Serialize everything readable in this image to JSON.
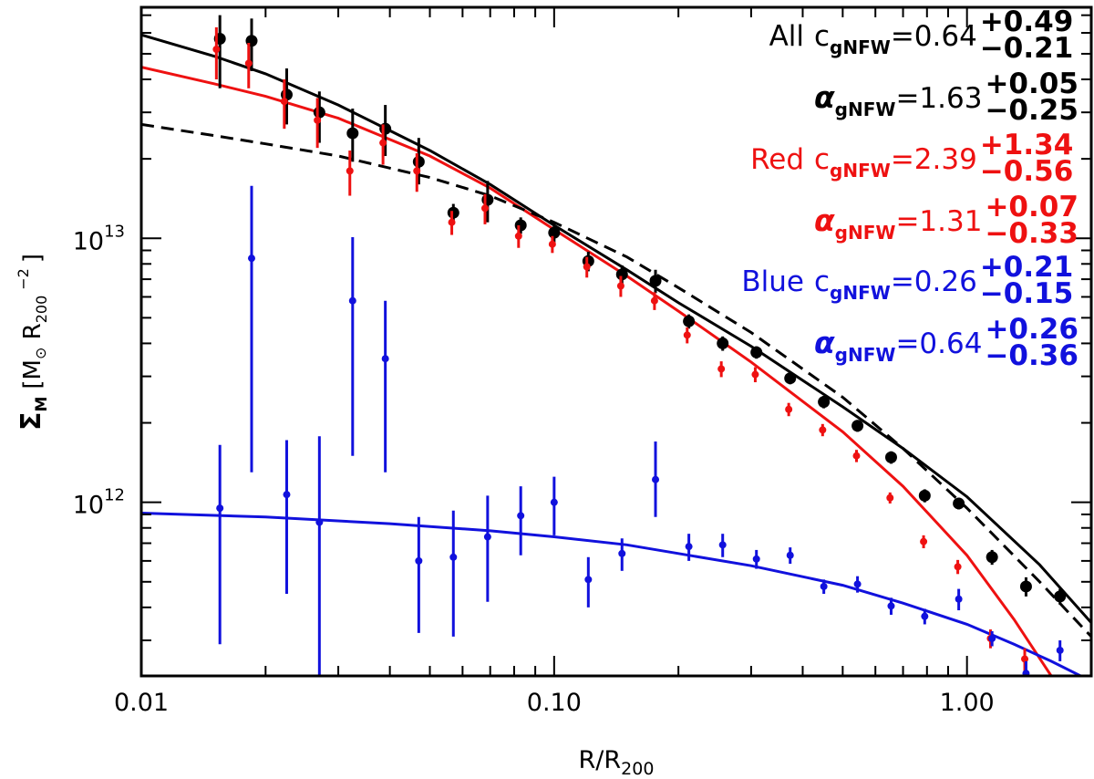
{
  "chart_data": {
    "type": "scatter",
    "xlabel_main": "R/R",
    "xlabel_sub": "200",
    "ylabel_main": "Σ",
    "ylabel_sub": "M",
    "ylabel_unit_text": "[M",
    "ylabel_unit_sun": "⊙",
    "ylabel_unit_r": " R",
    "ylabel_unit_rsub": "200",
    "ylabel_unit_exp": "−2",
    "ylabel_close": "]",
    "xscale": "log",
    "yscale": "log",
    "xlim": [
      0.01,
      2.0
    ],
    "ylim": [
      220000000000.0,
      75000000000000.0
    ],
    "x_ticks": [
      {
        "value": 0.01,
        "label": "0.01"
      },
      {
        "value": 0.1,
        "label": "0.10"
      },
      {
        "value": 1.0,
        "label": "1.00"
      }
    ],
    "y_ticks": [
      {
        "value": 1000000000000.0,
        "base": "10",
        "exp": "12"
      },
      {
        "value": 10000000000000.0,
        "base": "10",
        "exp": "13"
      }
    ],
    "grid": false,
    "legend_position": "top-right",
    "colors": {
      "all": "#000000",
      "red": "#ee1111",
      "blue": "#1111dd"
    },
    "series": [
      {
        "name": "All",
        "color": "#000000",
        "marker": "circle-large",
        "points": [
          {
            "x": 0.0155,
            "y": 57000000000000.0,
            "lo": 37000000000000.0,
            "hi": 70000000000000.0
          },
          {
            "x": 0.0185,
            "y": 56000000000000.0,
            "lo": 43000000000000.0,
            "hi": 68000000000000.0
          },
          {
            "x": 0.0225,
            "y": 35000000000000.0,
            "lo": 27000000000000.0,
            "hi": 44000000000000.0
          },
          {
            "x": 0.027,
            "y": 30000000000000.0,
            "lo": 23000000000000.0,
            "hi": 36000000000000.0
          },
          {
            "x": 0.0325,
            "y": 25000000000000.0,
            "lo": 19500000000000.0,
            "hi": 31000000000000.0
          },
          {
            "x": 0.039,
            "y": 26000000000000.0,
            "lo": 20500000000000.0,
            "hi": 32000000000000.0
          },
          {
            "x": 0.047,
            "y": 19500000000000.0,
            "lo": 16000000000000.0,
            "hi": 24000000000000.0
          },
          {
            "x": 0.057,
            "y": 12500000000000.0,
            "lo": 11500000000000.0,
            "hi": 13500000000000.0
          },
          {
            "x": 0.069,
            "y": 14000000000000.0,
            "lo": 11500000000000.0,
            "hi": 16500000000000.0
          },
          {
            "x": 0.083,
            "y": 11200000000000.0,
            "lo": 10400000000000.0,
            "hi": 12000000000000.0
          },
          {
            "x": 0.1,
            "y": 10500000000000.0,
            "lo": 9500000000000.0,
            "hi": 11500000000000.0
          },
          {
            "x": 0.121,
            "y": 8200000000000.0,
            "lo": 7500000000000.0,
            "hi": 8900000000000.0
          },
          {
            "x": 0.146,
            "y": 7300000000000.0,
            "lo": 6700000000000.0,
            "hi": 7900000000000.0
          },
          {
            "x": 0.176,
            "y": 6900000000000.0,
            "lo": 6200000000000.0,
            "hi": 7600000000000.0
          },
          {
            "x": 0.212,
            "y": 4850000000000.0,
            "lo": 4550000000000.0,
            "hi": 5150000000000.0
          },
          {
            "x": 0.256,
            "y": 4000000000000.0,
            "lo": 3750000000000.0,
            "hi": 4250000000000.0
          },
          {
            "x": 0.309,
            "y": 3700000000000.0,
            "lo": 3500000000000.0,
            "hi": 3900000000000.0
          },
          {
            "x": 0.373,
            "y": 2950000000000.0,
            "lo": 2800000000000.0,
            "hi": 3100000000000.0
          },
          {
            "x": 0.45,
            "y": 2400000000000.0,
            "lo": 2270000000000.0,
            "hi": 2530000000000.0
          },
          {
            "x": 0.543,
            "y": 1950000000000.0,
            "lo": 1850000000000.0,
            "hi": 2050000000000.0
          },
          {
            "x": 0.655,
            "y": 1480000000000.0,
            "lo": 1400000000000.0,
            "hi": 1560000000000.0
          },
          {
            "x": 0.79,
            "y": 1060000000000.0,
            "lo": 1000000000000.0,
            "hi": 1120000000000.0
          },
          {
            "x": 0.955,
            "y": 990000000000.0,
            "lo": 940000000000.0,
            "hi": 1040000000000.0
          },
          {
            "x": 1.15,
            "y": 620000000000.0,
            "lo": 580000000000.0,
            "hi": 660000000000.0
          },
          {
            "x": 1.39,
            "y": 480000000000.0,
            "lo": 440000000000.0,
            "hi": 520000000000.0
          },
          {
            "x": 1.68,
            "y": 440000000000.0,
            "lo": 410000000000.0,
            "hi": 470000000000.0
          }
        ]
      },
      {
        "name": "Red",
        "color": "#ee1111",
        "marker": "circle-small",
        "points": [
          {
            "x": 0.0152,
            "y": 52000000000000.0,
            "lo": 40000000000000.0,
            "hi": 63000000000000.0
          },
          {
            "x": 0.0182,
            "y": 46000000000000.0,
            "lo": 37000000000000.0,
            "hi": 55000000000000.0
          },
          {
            "x": 0.0222,
            "y": 33000000000000.0,
            "lo": 26000000000000.0,
            "hi": 40000000000000.0
          },
          {
            "x": 0.0267,
            "y": 28000000000000.0,
            "lo": 22000000000000.0,
            "hi": 34000000000000.0
          },
          {
            "x": 0.032,
            "y": 18000000000000.0,
            "lo": 14500000000000.0,
            "hi": 21500000000000.0
          },
          {
            "x": 0.0385,
            "y": 23000000000000.0,
            "lo": 19000000000000.0,
            "hi": 27000000000000.0
          },
          {
            "x": 0.0465,
            "y": 18000000000000.0,
            "lo": 15000000000000.0,
            "hi": 21000000000000.0
          },
          {
            "x": 0.0565,
            "y": 11500000000000.0,
            "lo": 10300000000000.0,
            "hi": 12700000000000.0
          },
          {
            "x": 0.068,
            "y": 13000000000000.0,
            "lo": 11300000000000.0,
            "hi": 14700000000000.0
          },
          {
            "x": 0.082,
            "y": 10200000000000.0,
            "lo": 9200000000000.0,
            "hi": 11200000000000.0
          },
          {
            "x": 0.099,
            "y": 9500000000000.0,
            "lo": 8800000000000.0,
            "hi": 10200000000000.0
          },
          {
            "x": 0.12,
            "y": 7800000000000.0,
            "lo": 7100000000000.0,
            "hi": 8500000000000.0
          },
          {
            "x": 0.145,
            "y": 6600000000000.0,
            "lo": 6000000000000.0,
            "hi": 7200000000000.0
          },
          {
            "x": 0.175,
            "y": 5800000000000.0,
            "lo": 5350000000000.0,
            "hi": 6250000000000.0
          },
          {
            "x": 0.21,
            "y": 4300000000000.0,
            "lo": 4000000000000.0,
            "hi": 4600000000000.0
          },
          {
            "x": 0.254,
            "y": 3200000000000.0,
            "lo": 2980000000000.0,
            "hi": 3420000000000.0
          },
          {
            "x": 0.307,
            "y": 3050000000000.0,
            "lo": 2850000000000.0,
            "hi": 3250000000000.0
          },
          {
            "x": 0.37,
            "y": 2250000000000.0,
            "lo": 2120000000000.0,
            "hi": 2380000000000.0
          },
          {
            "x": 0.447,
            "y": 1880000000000.0,
            "lo": 1780000000000.0,
            "hi": 1980000000000.0
          },
          {
            "x": 0.54,
            "y": 1500000000000.0,
            "lo": 1420000000000.0,
            "hi": 1580000000000.0
          },
          {
            "x": 0.651,
            "y": 1040000000000.0,
            "lo": 990000000000.0,
            "hi": 1090000000000.0
          },
          {
            "x": 0.785,
            "y": 710000000000.0,
            "lo": 670000000000.0,
            "hi": 750000000000.0
          },
          {
            "x": 0.95,
            "y": 570000000000.0,
            "lo": 535000000000.0,
            "hi": 605000000000.0
          },
          {
            "x": 1.14,
            "y": 305000000000.0,
            "lo": 280000000000.0,
            "hi": 330000000000.0
          },
          {
            "x": 1.38,
            "y": 255000000000.0,
            "lo": 230000000000.0,
            "hi": 280000000000.0
          }
        ]
      },
      {
        "name": "Blue",
        "color": "#1111dd",
        "marker": "circle-small",
        "points": [
          {
            "x": 0.0155,
            "y": 950000000000.0,
            "lo": 290000000000.0,
            "hi": 1650000000000.0
          },
          {
            "x": 0.0185,
            "y": 8400000000000.0,
            "lo": 1300000000000.0,
            "hi": 15800000000000.0
          },
          {
            "x": 0.0225,
            "y": 1070000000000.0,
            "lo": 450000000000.0,
            "hi": 1720000000000.0
          },
          {
            "x": 0.027,
            "y": 840000000000.0,
            "lo": 220000000000.0,
            "hi": 1780000000000.0
          },
          {
            "x": 0.0325,
            "y": 5800000000000.0,
            "lo": 1500000000000.0,
            "hi": 10100000000000.0
          },
          {
            "x": 0.039,
            "y": 3500000000000.0,
            "lo": 1300000000000.0,
            "hi": 5800000000000.0
          },
          {
            "x": 0.047,
            "y": 600000000000.0,
            "lo": 320000000000.0,
            "hi": 880000000000.0
          },
          {
            "x": 0.057,
            "y": 620000000000.0,
            "lo": 310000000000.0,
            "hi": 930000000000.0
          },
          {
            "x": 0.069,
            "y": 740000000000.0,
            "lo": 420000000000.0,
            "hi": 1060000000000.0
          },
          {
            "x": 0.083,
            "y": 890000000000.0,
            "lo": 630000000000.0,
            "hi": 1150000000000.0
          },
          {
            "x": 0.1,
            "y": 1000000000000.0,
            "lo": 750000000000.0,
            "hi": 1250000000000.0
          },
          {
            "x": 0.121,
            "y": 510000000000.0,
            "lo": 400000000000.0,
            "hi": 620000000000.0
          },
          {
            "x": 0.146,
            "y": 640000000000.0,
            "lo": 550000000000.0,
            "hi": 730000000000.0
          },
          {
            "x": 0.176,
            "y": 1220000000000.0,
            "lo": 880000000000.0,
            "hi": 1700000000000.0
          },
          {
            "x": 0.212,
            "y": 680000000000.0,
            "lo": 600000000000.0,
            "hi": 760000000000.0
          },
          {
            "x": 0.256,
            "y": 690000000000.0,
            "lo": 620000000000.0,
            "hi": 760000000000.0
          },
          {
            "x": 0.309,
            "y": 610000000000.0,
            "lo": 560000000000.0,
            "hi": 660000000000.0
          },
          {
            "x": 0.373,
            "y": 630000000000.0,
            "lo": 585000000000.0,
            "hi": 675000000000.0
          },
          {
            "x": 0.45,
            "y": 480000000000.0,
            "lo": 450000000000.0,
            "hi": 510000000000.0
          },
          {
            "x": 0.543,
            "y": 490000000000.0,
            "lo": 455000000000.0,
            "hi": 525000000000.0
          },
          {
            "x": 0.655,
            "y": 405000000000.0,
            "lo": 375000000000.0,
            "hi": 435000000000.0
          },
          {
            "x": 0.79,
            "y": 370000000000.0,
            "lo": 345000000000.0,
            "hi": 395000000000.0
          },
          {
            "x": 0.955,
            "y": 430000000000.0,
            "lo": 390000000000.0,
            "hi": 470000000000.0
          },
          {
            "x": 1.15,
            "y": 305000000000.0,
            "lo": 285000000000.0,
            "hi": 325000000000.0
          },
          {
            "x": 1.39,
            "y": 225000000000.0,
            "lo": 200000000000.0,
            "hi": 250000000000.0
          },
          {
            "x": 1.68,
            "y": 275000000000.0,
            "lo": 250000000000.0,
            "hi": 300000000000.0
          }
        ]
      }
    ],
    "curves": [
      {
        "name": "all-fit",
        "color": "#000000",
        "dash": false,
        "points": [
          [
            0.01,
            59000000000000.0
          ],
          [
            0.015,
            49000000000000.0
          ],
          [
            0.02,
            42000000000000.0
          ],
          [
            0.03,
            32000000000000.0
          ],
          [
            0.05,
            21500000000000.0
          ],
          [
            0.07,
            16000000000000.0
          ],
          [
            0.1,
            11200000000000.0
          ],
          [
            0.15,
            7600000000000.0
          ],
          [
            0.2,
            5700000000000.0
          ],
          [
            0.3,
            3900000000000.0
          ],
          [
            0.5,
            2300000000000.0
          ],
          [
            0.7,
            1600000000000.0
          ],
          [
            1.0,
            1050000000000.0
          ],
          [
            1.5,
            580000000000.0
          ],
          [
            2.0,
            350000000000.0
          ]
        ]
      },
      {
        "name": "red-fit",
        "color": "#ee1111",
        "dash": false,
        "points": [
          [
            0.01,
            44500000000000.0
          ],
          [
            0.015,
            38500000000000.0
          ],
          [
            0.02,
            34500000000000.0
          ],
          [
            0.03,
            28500000000000.0
          ],
          [
            0.05,
            20500000000000.0
          ],
          [
            0.07,
            15500000000000.0
          ],
          [
            0.1,
            10800000000000.0
          ],
          [
            0.15,
            7200000000000.0
          ],
          [
            0.2,
            5300000000000.0
          ],
          [
            0.3,
            3400000000000.0
          ],
          [
            0.5,
            1850000000000.0
          ],
          [
            0.7,
            1150000000000.0
          ],
          [
            1.0,
            630000000000.0
          ],
          [
            1.3,
            360000000000.0
          ],
          [
            1.6,
            220000000000.0
          ]
        ]
      },
      {
        "name": "dashed-fit",
        "color": "#000000",
        "dash": true,
        "points": [
          [
            0.01,
            27000000000000.0
          ],
          [
            0.015,
            24500000000000.0
          ],
          [
            0.02,
            22800000000000.0
          ],
          [
            0.03,
            20500000000000.0
          ],
          [
            0.05,
            17000000000000.0
          ],
          [
            0.07,
            14500000000000.0
          ],
          [
            0.1,
            11500000000000.0
          ],
          [
            0.15,
            8500000000000.0
          ],
          [
            0.2,
            6500000000000.0
          ],
          [
            0.3,
            4400000000000.0
          ],
          [
            0.5,
            2500000000000.0
          ],
          [
            0.7,
            1600000000000.0
          ],
          [
            1.0,
            950000000000.0
          ],
          [
            1.5,
            500000000000.0
          ],
          [
            2.0,
            310000000000.0
          ]
        ]
      },
      {
        "name": "blue-fit",
        "color": "#1111dd",
        "dash": false,
        "points": [
          [
            0.01,
            910000000000.0
          ],
          [
            0.02,
            880000000000.0
          ],
          [
            0.04,
            830000000000.0
          ],
          [
            0.07,
            780000000000.0
          ],
          [
            0.1,
            740000000000.0
          ],
          [
            0.15,
            690000000000.0
          ],
          [
            0.2,
            640000000000.0
          ],
          [
            0.3,
            575000000000.0
          ],
          [
            0.5,
            485000000000.0
          ],
          [
            0.7,
            415000000000.0
          ],
          [
            1.0,
            345000000000.0
          ],
          [
            1.3,
            290000000000.0
          ],
          [
            1.6,
            250000000000.0
          ],
          [
            2.0,
            210000000000.0
          ]
        ]
      }
    ]
  },
  "legend": [
    {
      "group": "All",
      "color": "#000000",
      "c_name": "c",
      "c_sub": "gNFW",
      "c_eq": "=0.64",
      "c_up": "+0.49",
      "c_dn": "−0.21",
      "a_name": "α",
      "a_sub": "gNFW",
      "a_eq": "=1.63",
      "a_up": "+0.05",
      "a_dn": "−0.25"
    },
    {
      "group": "Red",
      "color": "#ee1111",
      "c_name": "c",
      "c_sub": "gNFW",
      "c_eq": "=2.39",
      "c_up": "+1.34",
      "c_dn": "−0.56",
      "a_name": "α",
      "a_sub": "gNFW",
      "a_eq": "=1.31",
      "a_up": "+0.07",
      "a_dn": "−0.33"
    },
    {
      "group": "Blue",
      "color": "#1111dd",
      "c_name": "c",
      "c_sub": "gNFW",
      "c_eq": "=0.26",
      "c_up": "+0.21",
      "c_dn": "−0.15",
      "a_name": "α",
      "a_sub": "gNFW",
      "a_eq": "=0.64",
      "a_up": "+0.26",
      "a_dn": "−0.36"
    }
  ]
}
